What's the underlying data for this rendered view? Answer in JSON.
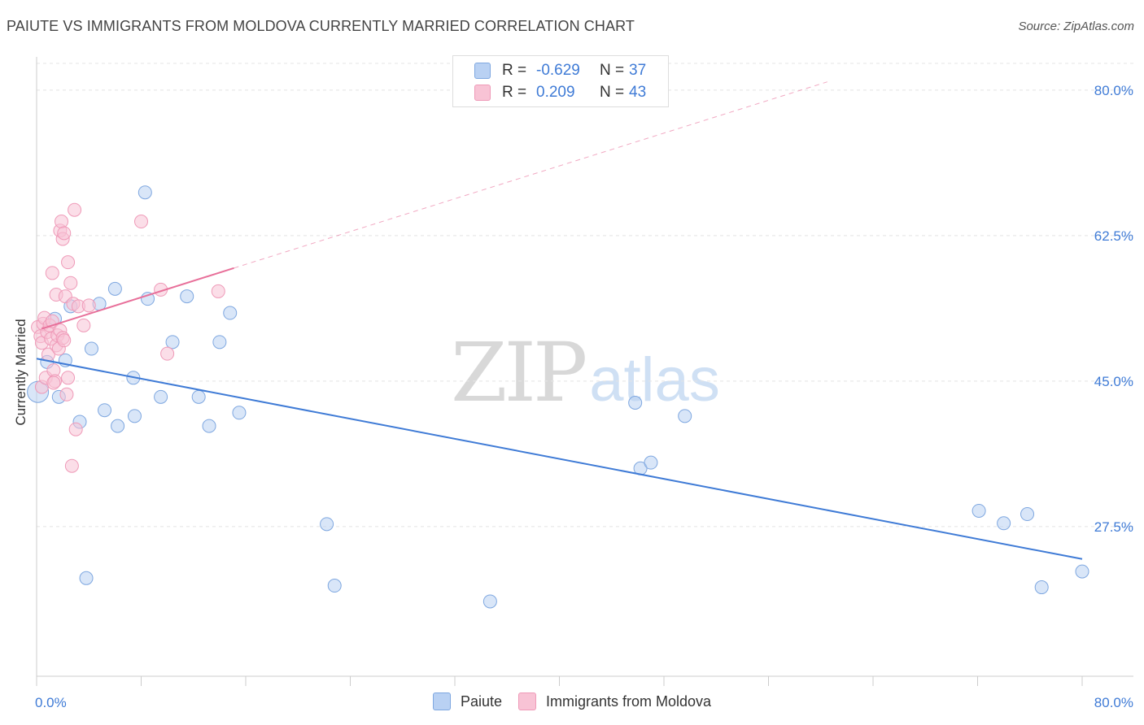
{
  "title": "PAIUTE VS IMMIGRANTS FROM MOLDOVA CURRENTLY MARRIED CORRELATION CHART",
  "source": "Source: ZipAtlas.com",
  "watermark": {
    "zip": "ZIP",
    "atlas": "atlas"
  },
  "colors": {
    "blue": "#3f7bd6",
    "blue_fill": "#b9d1f3",
    "pink": "#e8709a",
    "pink_fill": "#f8c3d5",
    "grid": "#e4e4e4"
  },
  "legend_top": [
    {
      "r_label": "R =",
      "r_value": "-0.629",
      "n_label": "N =",
      "n_value": "37",
      "color": "#b9d1f3",
      "border": "#7ea7e0"
    },
    {
      "r_label": "R =",
      "r_value": "0.209",
      "n_label": "N =",
      "n_value": "43",
      "color": "#f8c3d5",
      "border": "#ef9ab8"
    }
  ],
  "legend_bottom": [
    {
      "label": "Paiute",
      "color": "#b9d1f3",
      "border": "#7ea7e0"
    },
    {
      "label": "Immigrants from Moldova",
      "color": "#f8c3d5",
      "border": "#ef9ab8"
    }
  ],
  "chart_data": {
    "type": "scatter",
    "title": "PAIUTE VS IMMIGRANTS FROM MOLDOVA CURRENTLY MARRIED CORRELATION CHART",
    "xlabel": "",
    "ylabel": "Currently Married",
    "xlim": [
      0,
      80
    ],
    "ylim": [
      9.5,
      84
    ],
    "x_tick_labels": {
      "left": "0.0%",
      "right": "80.0%"
    },
    "y_ticks": [
      27.5,
      45.0,
      62.5,
      80.0
    ],
    "y_tick_labels": [
      "27.5%",
      "45.0%",
      "62.5%",
      "80.0%"
    ],
    "series": [
      {
        "name": "Paiute",
        "r": -0.629,
        "n": 37,
        "points": [
          [
            0.1,
            43.7
          ],
          [
            0.8,
            47.3
          ],
          [
            1.4,
            52.5
          ],
          [
            1.7,
            43.1
          ],
          [
            2.2,
            47.5
          ],
          [
            3.3,
            40.1
          ],
          [
            3.8,
            21.3
          ],
          [
            4.2,
            48.9
          ],
          [
            4.8,
            54.3
          ],
          [
            5.2,
            41.5
          ],
          [
            6.0,
            56.1
          ],
          [
            6.2,
            39.6
          ],
          [
            7.4,
            45.4
          ],
          [
            7.5,
            40.8
          ],
          [
            8.3,
            67.7
          ],
          [
            8.5,
            54.9
          ],
          [
            9.5,
            43.1
          ],
          [
            10.4,
            49.7
          ],
          [
            11.5,
            55.2
          ],
          [
            12.4,
            43.1
          ],
          [
            13.2,
            39.6
          ],
          [
            14.0,
            49.7
          ],
          [
            14.8,
            53.2
          ],
          [
            15.5,
            41.2
          ],
          [
            22.2,
            27.8
          ],
          [
            22.8,
            20.4
          ],
          [
            34.7,
            18.5
          ],
          [
            45.8,
            42.4
          ],
          [
            46.2,
            34.5
          ],
          [
            47.0,
            35.2
          ],
          [
            49.6,
            40.8
          ],
          [
            72.1,
            29.4
          ],
          [
            74.0,
            27.9
          ],
          [
            75.8,
            29.0
          ],
          [
            76.9,
            20.2
          ],
          [
            80.0,
            22.1
          ],
          [
            2.6,
            54.0
          ]
        ],
        "trend": {
          "x": [
            0,
            80.0
          ],
          "y": [
            47.7,
            23.6
          ]
        }
      },
      {
        "name": "Immigrants from Moldova",
        "r": 0.209,
        "n": 43,
        "points": [
          [
            0.1,
            51.5
          ],
          [
            0.3,
            50.4
          ],
          [
            0.4,
            49.6
          ],
          [
            0.5,
            51.9
          ],
          [
            0.6,
            52.6
          ],
          [
            0.8,
            50.9
          ],
          [
            1.0,
            51.7
          ],
          [
            1.1,
            50.1
          ],
          [
            1.2,
            52.2
          ],
          [
            0.4,
            44.3
          ],
          [
            0.7,
            45.4
          ],
          [
            0.9,
            48.2
          ],
          [
            1.3,
            46.3
          ],
          [
            1.5,
            49.3
          ],
          [
            1.6,
            50.5
          ],
          [
            1.7,
            48.9
          ],
          [
            1.8,
            51.1
          ],
          [
            2.0,
            50.2
          ],
          [
            1.4,
            45.0
          ],
          [
            1.5,
            55.4
          ],
          [
            1.2,
            58.0
          ],
          [
            2.1,
            49.9
          ],
          [
            2.3,
            43.4
          ],
          [
            2.4,
            45.4
          ],
          [
            1.8,
            63.1
          ],
          [
            1.9,
            64.2
          ],
          [
            2.0,
            62.1
          ],
          [
            2.1,
            62.8
          ],
          [
            2.2,
            55.2
          ],
          [
            2.4,
            59.3
          ],
          [
            2.6,
            56.8
          ],
          [
            2.8,
            54.3
          ],
          [
            2.9,
            65.6
          ],
          [
            3.0,
            39.2
          ],
          [
            3.2,
            54.0
          ],
          [
            3.6,
            51.7
          ],
          [
            4.0,
            54.1
          ],
          [
            2.7,
            34.8
          ],
          [
            8.0,
            64.2
          ],
          [
            9.5,
            56.0
          ],
          [
            10.0,
            48.3
          ],
          [
            13.9,
            55.8
          ],
          [
            1.3,
            44.8
          ]
        ],
        "trend": {
          "x": [
            0.4,
            15.1
          ],
          "y": [
            51.3,
            58.6
          ]
        },
        "trend_extended": {
          "x": [
            15.1,
            60.5
          ],
          "y": [
            58.6,
            81.0
          ]
        }
      }
    ]
  }
}
